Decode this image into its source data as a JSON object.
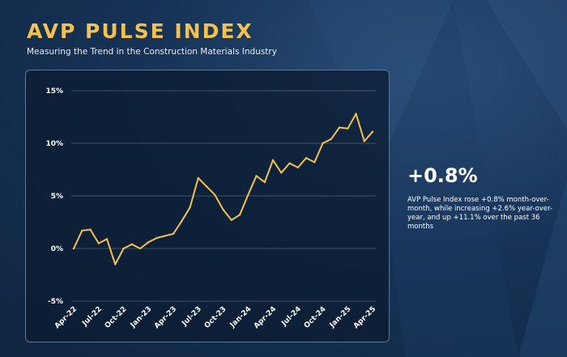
{
  "header": {
    "title": "AVP PULSE INDEX",
    "subtitle": "Measuring the Trend in the Construction Materials Industry"
  },
  "stat": {
    "value": "+0.8%",
    "description": "AVP Pulse Index rose +0.8% month-over-month, while increasing +2.6% year-over-year, and up +11.1% over the past 36 months"
  },
  "colors": {
    "accent": "#f2c14e",
    "line": "#f2c14e",
    "background": "#173357",
    "panel": "#0c1c32",
    "grid": "#ffffff"
  },
  "chart_data": {
    "type": "line",
    "title": "",
    "xlabel": "",
    "ylabel": "",
    "ylim": [
      -5,
      15
    ],
    "yticks": [
      15,
      10,
      5,
      0,
      -5
    ],
    "ytick_labels": [
      "15%",
      "10%",
      "5%",
      "0%",
      "-5%"
    ],
    "xtick_labels": [
      "Apr-22",
      "Jul-22",
      "Oct-22",
      "Jan-23",
      "Apr-23",
      "Jul-23",
      "Oct-23",
      "Jan-24",
      "Apr-24",
      "Jul-24",
      "Oct-24",
      "Jan-25",
      "Apr-25"
    ],
    "grid": true,
    "series": [
      {
        "x": [
          "Apr-22",
          "May-22",
          "Jun-22",
          "Jul-22",
          "Aug-22",
          "Sep-22",
          "Oct-22",
          "Nov-22",
          "Dec-22",
          "Jan-23",
          "Feb-23",
          "Mar-23",
          "Apr-23",
          "May-23",
          "Jun-23",
          "Jul-23",
          "Aug-23",
          "Sep-23",
          "Oct-23",
          "Nov-23",
          "Dec-23",
          "Jan-24",
          "Feb-24",
          "Mar-24",
          "Apr-24",
          "May-24",
          "Jun-24",
          "Jul-24",
          "Aug-24",
          "Sep-24",
          "Oct-24",
          "Nov-24",
          "Dec-24",
          "Jan-25",
          "Feb-25",
          "Mar-25",
          "Apr-25"
        ],
        "values": [
          0.0,
          1.7,
          1.8,
          0.5,
          0.9,
          -1.5,
          0.0,
          0.4,
          0.0,
          0.6,
          1.0,
          1.2,
          1.4,
          2.6,
          3.9,
          6.7,
          5.9,
          5.1,
          3.7,
          2.7,
          3.2,
          5.1,
          6.9,
          6.3,
          8.4,
          7.2,
          8.1,
          7.7,
          8.6,
          8.2,
          10.0,
          10.4,
          11.5,
          11.4,
          12.8,
          10.2,
          11.1
        ]
      }
    ]
  }
}
